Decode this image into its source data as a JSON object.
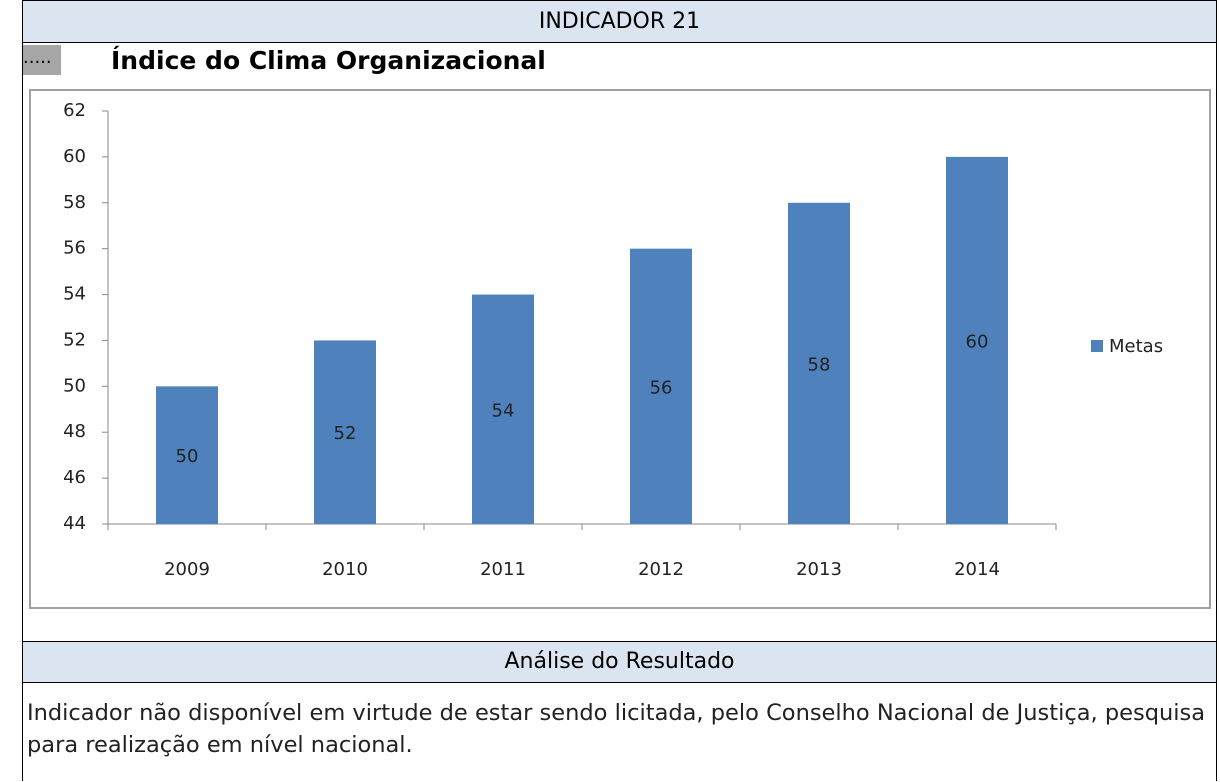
{
  "header": {
    "title": "INDICADOR 21",
    "prefix": ".....",
    "subtitle": "Índice do Clima Organizacional"
  },
  "chart_data": {
    "type": "bar",
    "categories": [
      "2009",
      "2010",
      "2011",
      "2012",
      "2013",
      "2014"
    ],
    "series": [
      {
        "name": "Metas",
        "color": "#4f81bd",
        "values": [
          50,
          52,
          54,
          56,
          58,
          60
        ]
      }
    ],
    "ylim": [
      44,
      62
    ],
    "yticks": [
      44,
      46,
      48,
      50,
      52,
      54,
      56,
      58,
      60,
      62
    ],
    "grid": false,
    "legend": "right"
  },
  "analysis": {
    "title": "Análise do Resultado",
    "text": "Indicador não disponível em virtude de estar sendo licitada, pelo Conselho Nacional de Justiça, pesquisa para realização em nível nacional."
  }
}
